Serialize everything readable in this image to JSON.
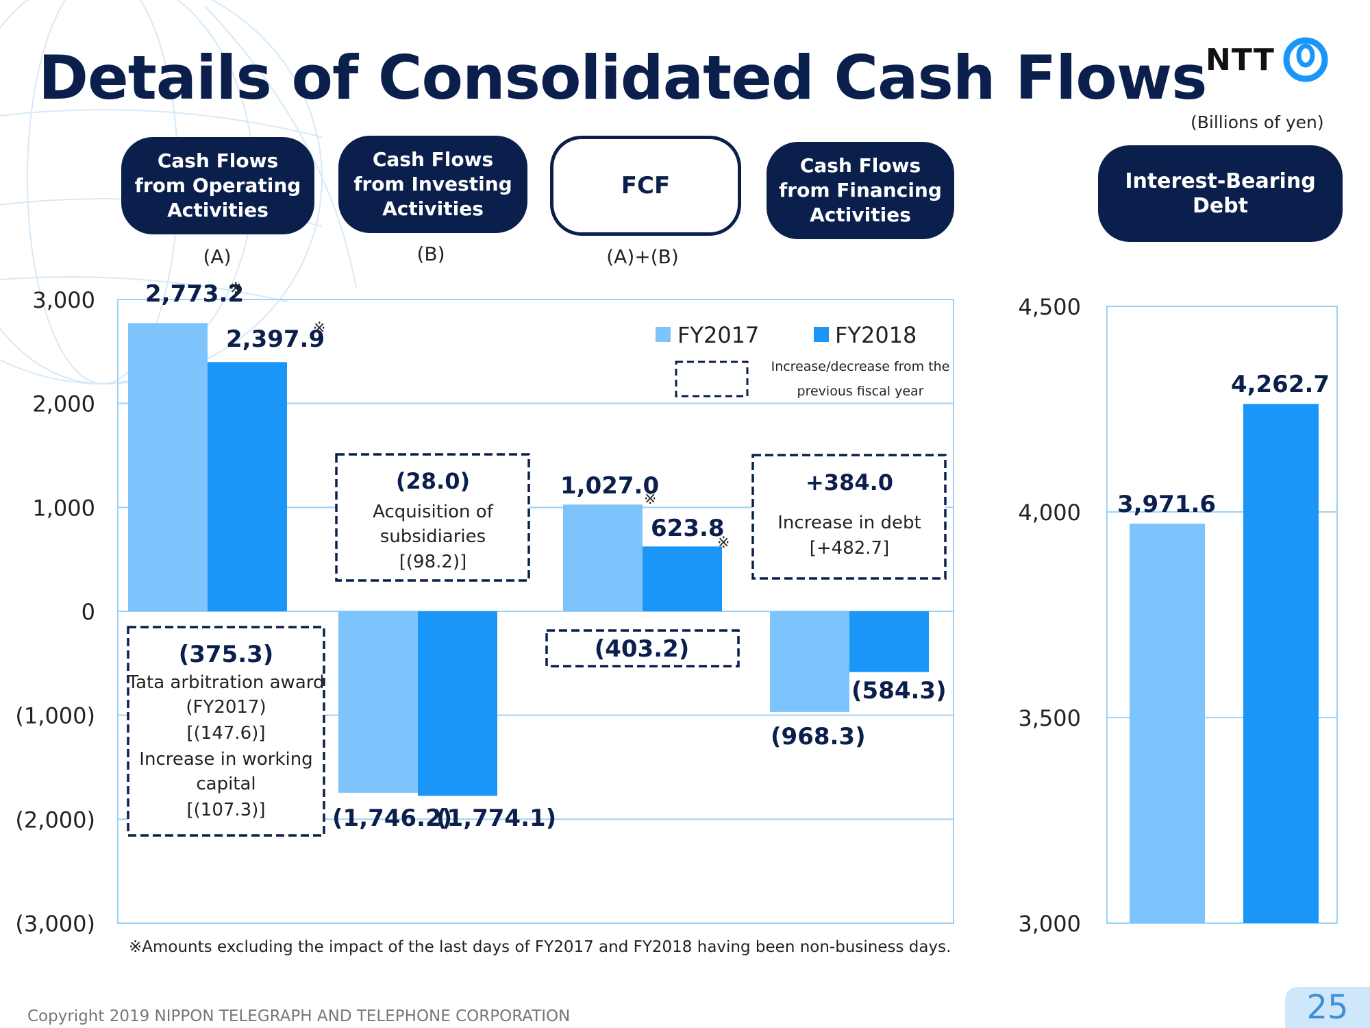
{
  "page": {
    "title": "Details of Consolidated Cash Flows",
    "logo_text": "NTT",
    "unit": "(Billions of yen)",
    "footnote": "※Amounts excluding the impact of the last days of FY2017 and FY2018 having been non-business days.",
    "copyright": "Copyright 2019 NIPPON TELEGRAPH AND TELEPHONE CORPORATION",
    "page_number": "25"
  },
  "headers": [
    {
      "label": "Cash Flows\nfrom Operating\nActivities",
      "sub": "(A)"
    },
    {
      "label": "Cash Flows\nfrom Investing\nActivities",
      "sub": "(B)"
    },
    {
      "label": "FCF",
      "sub": "(A)+(B)"
    },
    {
      "label": "Cash Flows\nfrom Financing\nActivities",
      "sub": ""
    },
    {
      "label": "Interest-Bearing\nDebt",
      "sub": ""
    }
  ],
  "legend": {
    "fy2017": "FY2017",
    "fy2018": "FY2018",
    "dashed_note_line1": "Increase/decrease from the",
    "dashed_note_line2": "previous fiscal year"
  },
  "colors": {
    "fy2017": "#7cc4fb",
    "fy2018": "#1996f8",
    "navy": "#0b1f4d",
    "grid": "#9fd0f5"
  },
  "chart_data": [
    {
      "type": "bar",
      "categories": [
        "Cash Flows from Operating Activities",
        "Cash Flows from Investing Activities",
        "FCF",
        "Cash Flows from Financing Activities"
      ],
      "series": [
        {
          "name": "FY2017",
          "values": [
            2773.2,
            -1746.2,
            1027.0,
            -968.3
          ]
        },
        {
          "name": "FY2018",
          "values": [
            2397.9,
            -1774.1,
            623.8,
            -584.3
          ]
        }
      ],
      "value_labels": {
        "FY2017": [
          "2,773.2",
          "(1,746.2)",
          "1,027.0",
          "(968.3)"
        ],
        "FY2018": [
          "2,397.9",
          "(1,774.1)",
          "623.8",
          "(584.3)"
        ]
      },
      "asterisk_mark": "※",
      "ylim": [
        -3000,
        3000
      ],
      "yticks": [
        3000,
        2000,
        1000,
        0,
        -1000,
        -2000,
        -3000
      ],
      "ytick_labels": [
        "3,000",
        "2,000",
        "1,000",
        "0",
        "(1,000)",
        "(2,000)",
        "(3,000)"
      ],
      "legend_position": "top-right",
      "annotations": [
        {
          "lines": [
            "(375.3)",
            "Tata arbitration award",
            "(FY2017)",
            "[(147.6)]",
            "Increase in working",
            "capital",
            "[(107.3)]"
          ]
        },
        {
          "lines": [
            "(28.0)",
            "Acquisition of",
            "subsidiaries",
            "[(98.2)]"
          ]
        },
        {
          "lines": [
            "(403.2)"
          ]
        },
        {
          "lines": [
            "+384.0",
            "Increase in debt",
            "[+482.7]"
          ]
        }
      ]
    },
    {
      "type": "bar",
      "categories": [
        "Interest-Bearing Debt"
      ],
      "series": [
        {
          "name": "FY2017",
          "values": [
            3971.6
          ]
        },
        {
          "name": "FY2018",
          "values": [
            4262.7
          ]
        }
      ],
      "value_labels": {
        "FY2017": [
          "3,971.6"
        ],
        "FY2018": [
          "4,262.7"
        ]
      },
      "ylim": [
        3000,
        4500
      ],
      "yticks": [
        4500,
        4000,
        3500,
        3000
      ],
      "ytick_labels": [
        "4,500",
        "4,000",
        "3,500",
        "3,000"
      ]
    }
  ]
}
